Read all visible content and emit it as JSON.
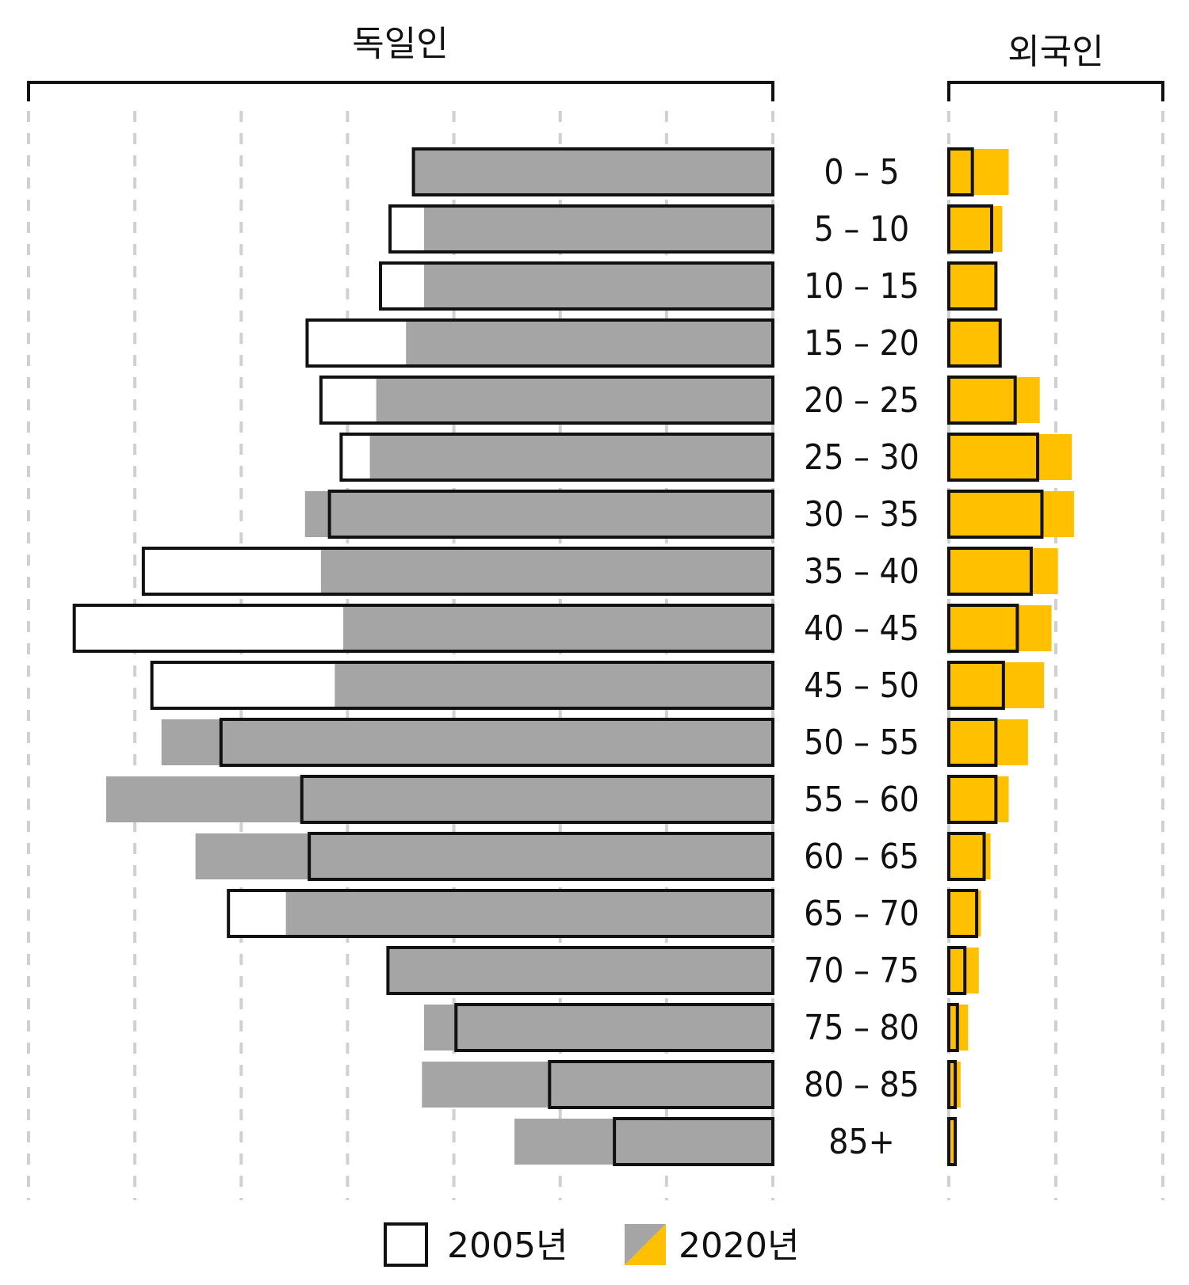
{
  "colors": {
    "bar_2020_german": "#a5a5a5",
    "bar_2020_foreign": "#ffc000",
    "bar_2005_stroke": "#111111",
    "bar_2005_fill_white": "#ffffff",
    "grid": "#d0d0d0"
  },
  "chart_data": {
    "type": "bar",
    "orientation": "horizontal-population-pyramid",
    "panels": [
      {
        "key": "german",
        "title": "독일인",
        "direction": "left"
      },
      {
        "key": "foreign",
        "title": "외국인",
        "direction": "right"
      }
    ],
    "categories": [
      "0 – 5",
      "5 – 10",
      "10 – 15",
      "15 – 20",
      "20 – 25",
      "25 – 30",
      "30 – 35",
      "35 – 40",
      "40 – 45",
      "45 – 50",
      "50 – 55",
      "55 – 60",
      "60 – 65",
      "65 – 70",
      "70 – 75",
      "75 – 80",
      "80 – 85",
      "85+"
    ],
    "series": [
      {
        "name": "2005년",
        "panel": "german",
        "values": [
          3.38,
          3.6,
          3.69,
          4.38,
          4.25,
          4.06,
          4.17,
          5.92,
          6.57,
          5.84,
          5.19,
          4.43,
          4.36,
          5.12,
          3.62,
          2.98,
          2.1,
          1.49
        ]
      },
      {
        "name": "2020년",
        "panel": "german",
        "values": [
          3.38,
          3.28,
          3.28,
          3.45,
          3.73,
          3.79,
          4.4,
          4.25,
          4.04,
          4.12,
          5.75,
          6.27,
          5.43,
          4.58,
          3.62,
          3.28,
          3.3,
          2.43
        ]
      },
      {
        "name": "2005년",
        "panel": "foreign",
        "values": [
          0.22,
          0.4,
          0.44,
          0.48,
          0.62,
          0.83,
          0.87,
          0.77,
          0.64,
          0.51,
          0.44,
          0.44,
          0.33,
          0.26,
          0.15,
          0.08,
          0.06,
          0.06
        ]
      },
      {
        "name": "2020년",
        "panel": "foreign",
        "values": [
          0.56,
          0.5,
          0.44,
          0.48,
          0.85,
          1.15,
          1.17,
          1.02,
          0.96,
          0.89,
          0.74,
          0.56,
          0.39,
          0.3,
          0.28,
          0.18,
          0.11,
          0.06
        ]
      }
    ],
    "german_xlim": [
      0,
      7
    ],
    "foreign_xlim": [
      0,
      2
    ],
    "grid": true,
    "legend": {
      "position": "bottom",
      "items": [
        {
          "label": "2005년",
          "swatch": "outlined-white"
        },
        {
          "label": "2020년",
          "swatch": "gray-yellow-split"
        }
      ]
    }
  }
}
